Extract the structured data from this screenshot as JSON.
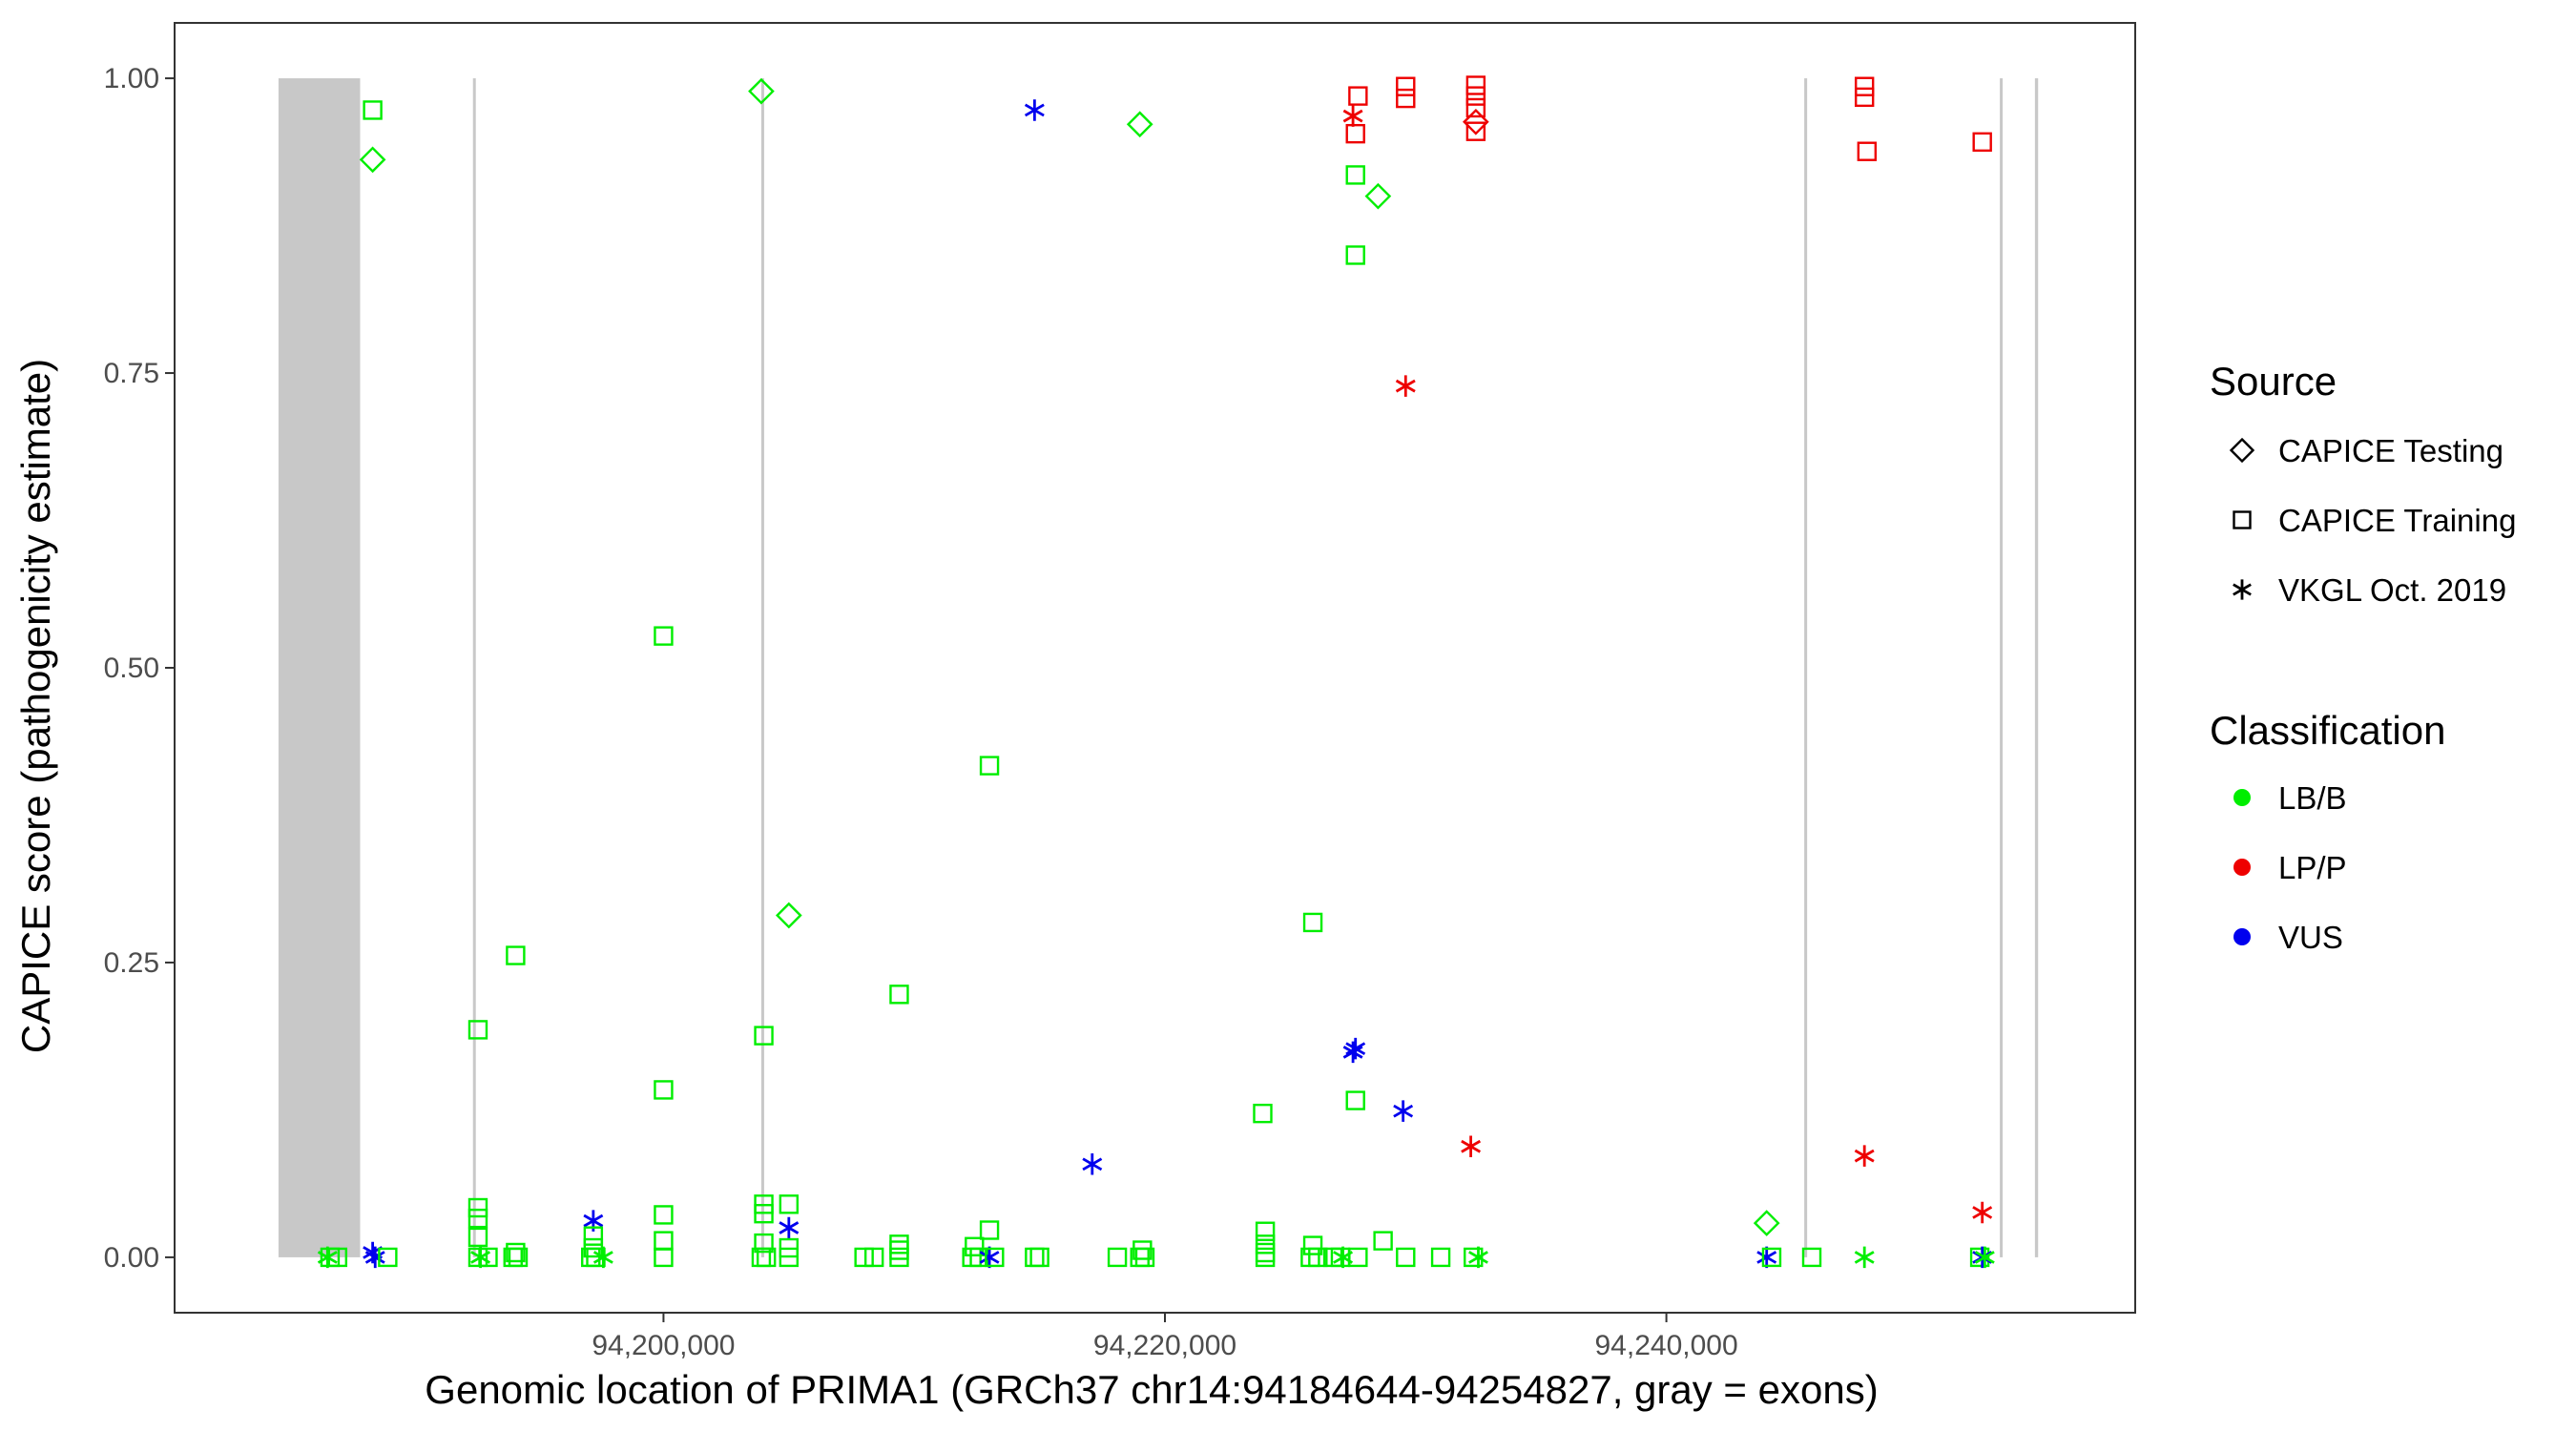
{
  "chart_data": {
    "type": "scatter",
    "title": "",
    "xlabel": "Genomic location of PRIMA1 (GRCh37 chr14:94184644-94254827, gray = exons)",
    "ylabel": "CAPICE score (pathogenicity estimate)",
    "xlim": [
      94180500,
      94258700
    ],
    "ylim": [
      -0.047,
      1.047
    ],
    "x_ticks": [
      94200000,
      94220000,
      94240000
    ],
    "x_tick_labels": [
      "94,200,000",
      "94,220,000",
      "94,240,000"
    ],
    "y_ticks": [
      0,
      0.25,
      0.5,
      0.75,
      1
    ],
    "y_tick_labels": [
      "0.00",
      "0.25",
      "0.50",
      "0.75",
      "1.00"
    ],
    "grid": false,
    "exons": [
      [
        94184644,
        94187900
      ],
      [
        94192400,
        94192500
      ],
      [
        94203900,
        94204000
      ],
      [
        94245500,
        94245600
      ],
      [
        94253300,
        94253400
      ],
      [
        94254700,
        94254827
      ]
    ],
    "legend_placement": "right",
    "legends": [
      {
        "title": "Source",
        "items": [
          {
            "label": "CAPICE Testing",
            "shape": "diamond"
          },
          {
            "label": "CAPICE Training",
            "shape": "square"
          },
          {
            "label": "VKGL Oct. 2019",
            "shape": "asterisk"
          }
        ]
      },
      {
        "title": "Classification",
        "items": [
          {
            "label": "LB/B",
            "color": "#00ee00"
          },
          {
            "label": "LP/P",
            "color": "#ee0000"
          },
          {
            "label": "VUS",
            "color": "#0000ee"
          }
        ]
      }
    ],
    "colors": {
      "LB/B": "#00ee00",
      "LP/P": "#ee0000",
      "VUS": "#0000ee"
    },
    "points": [
      {
        "x": 94188400,
        "y": 0.973,
        "source": "CAPICE Training",
        "class": "LB/B"
      },
      {
        "x": 94188400,
        "y": 0.931,
        "source": "CAPICE Testing",
        "class": "LB/B"
      },
      {
        "x": 94203900,
        "y": 0.989,
        "source": "CAPICE Testing",
        "class": "LB/B"
      },
      {
        "x": 94214800,
        "y": 0.973,
        "source": "VKGL Oct. 2019",
        "class": "VUS"
      },
      {
        "x": 94219000,
        "y": 0.961,
        "source": "CAPICE Testing",
        "class": "LB/B"
      },
      {
        "x": 94227600,
        "y": 0.918,
        "source": "CAPICE Training",
        "class": "LB/B"
      },
      {
        "x": 94228500,
        "y": 0.9,
        "source": "CAPICE Testing",
        "class": "LB/B"
      },
      {
        "x": 94227600,
        "y": 0.85,
        "source": "CAPICE Training",
        "class": "LB/B"
      },
      {
        "x": 94227500,
        "y": 0.968,
        "source": "VKGL Oct. 2019",
        "class": "LP/P"
      },
      {
        "x": 94227700,
        "y": 0.985,
        "source": "CAPICE Training",
        "class": "LP/P"
      },
      {
        "x": 94227600,
        "y": 0.953,
        "source": "CAPICE Training",
        "class": "LP/P"
      },
      {
        "x": 94229600,
        "y": 0.993,
        "source": "CAPICE Training",
        "class": "LP/P"
      },
      {
        "x": 94229600,
        "y": 0.983,
        "source": "CAPICE Training",
        "class": "LP/P"
      },
      {
        "x": 94232400,
        "y": 0.994,
        "source": "CAPICE Training",
        "class": "LP/P"
      },
      {
        "x": 94232400,
        "y": 0.985,
        "source": "CAPICE Training",
        "class": "LP/P"
      },
      {
        "x": 94232400,
        "y": 0.975,
        "source": "CAPICE Training",
        "class": "LP/P"
      },
      {
        "x": 94232400,
        "y": 0.963,
        "source": "CAPICE Testing",
        "class": "LP/P"
      },
      {
        "x": 94232400,
        "y": 0.955,
        "source": "CAPICE Training",
        "class": "LP/P"
      },
      {
        "x": 94229600,
        "y": 0.739,
        "source": "VKGL Oct. 2019",
        "class": "LP/P"
      },
      {
        "x": 94247900,
        "y": 0.993,
        "source": "CAPICE Training",
        "class": "LP/P"
      },
      {
        "x": 94247900,
        "y": 0.984,
        "source": "CAPICE Training",
        "class": "LP/P"
      },
      {
        "x": 94248000,
        "y": 0.938,
        "source": "CAPICE Training",
        "class": "LP/P"
      },
      {
        "x": 94252600,
        "y": 0.946,
        "source": "CAPICE Training",
        "class": "LP/P"
      },
      {
        "x": 94200000,
        "y": 0.527,
        "source": "CAPICE Training",
        "class": "LB/B"
      },
      {
        "x": 94213000,
        "y": 0.417,
        "source": "CAPICE Training",
        "class": "LB/B"
      },
      {
        "x": 94205000,
        "y": 0.29,
        "source": "CAPICE Testing",
        "class": "LB/B"
      },
      {
        "x": 94225900,
        "y": 0.284,
        "source": "CAPICE Training",
        "class": "LB/B"
      },
      {
        "x": 94194100,
        "y": 0.256,
        "source": "CAPICE Training",
        "class": "LB/B"
      },
      {
        "x": 94209400,
        "y": 0.223,
        "source": "CAPICE Training",
        "class": "LB/B"
      },
      {
        "x": 94192600,
        "y": 0.193,
        "source": "CAPICE Training",
        "class": "LB/B"
      },
      {
        "x": 94204000,
        "y": 0.188,
        "source": "CAPICE Training",
        "class": "LB/B"
      },
      {
        "x": 94227600,
        "y": 0.177,
        "source": "VKGL Oct. 2019",
        "class": "VUS"
      },
      {
        "x": 94227500,
        "y": 0.174,
        "source": "VKGL Oct. 2019",
        "class": "VUS"
      },
      {
        "x": 94200000,
        "y": 0.142,
        "source": "CAPICE Training",
        "class": "LB/B"
      },
      {
        "x": 94227600,
        "y": 0.133,
        "source": "CAPICE Training",
        "class": "LB/B"
      },
      {
        "x": 94229500,
        "y": 0.124,
        "source": "VKGL Oct. 2019",
        "class": "VUS"
      },
      {
        "x": 94223900,
        "y": 0.122,
        "source": "CAPICE Training",
        "class": "LB/B"
      },
      {
        "x": 94232200,
        "y": 0.094,
        "source": "VKGL Oct. 2019",
        "class": "LP/P"
      },
      {
        "x": 94247900,
        "y": 0.086,
        "source": "VKGL Oct. 2019",
        "class": "LP/P"
      },
      {
        "x": 94217100,
        "y": 0.079,
        "source": "VKGL Oct. 2019",
        "class": "VUS"
      },
      {
        "x": 94192600,
        "y": 0.042,
        "source": "CAPICE Training",
        "class": "LB/B"
      },
      {
        "x": 94192600,
        "y": 0.033,
        "source": "CAPICE Training",
        "class": "LB/B"
      },
      {
        "x": 94200000,
        "y": 0.036,
        "source": "CAPICE Training",
        "class": "LB/B"
      },
      {
        "x": 94204000,
        "y": 0.045,
        "source": "CAPICE Training",
        "class": "LB/B"
      },
      {
        "x": 94204000,
        "y": 0.037,
        "source": "CAPICE Training",
        "class": "LB/B"
      },
      {
        "x": 94205000,
        "y": 0.045,
        "source": "CAPICE Training",
        "class": "LB/B"
      },
      {
        "x": 94197200,
        "y": 0.031,
        "source": "VKGL Oct. 2019",
        "class": "VUS"
      },
      {
        "x": 94205000,
        "y": 0.025,
        "source": "VKGL Oct. 2019",
        "class": "VUS"
      },
      {
        "x": 94213000,
        "y": 0.023,
        "source": "CAPICE Training",
        "class": "LB/B"
      },
      {
        "x": 94224000,
        "y": 0.022,
        "source": "CAPICE Training",
        "class": "LB/B"
      },
      {
        "x": 94244000,
        "y": 0.029,
        "source": "CAPICE Testing",
        "class": "LB/B"
      },
      {
        "x": 94252600,
        "y": 0.038,
        "source": "VKGL Oct. 2019",
        "class": "LP/P"
      },
      {
        "x": 94192600,
        "y": 0.017,
        "source": "CAPICE Training",
        "class": "LB/B"
      },
      {
        "x": 94197200,
        "y": 0.018,
        "source": "CAPICE Training",
        "class": "LB/B"
      },
      {
        "x": 94200000,
        "y": 0.014,
        "source": "CAPICE Training",
        "class": "LB/B"
      },
      {
        "x": 94204000,
        "y": 0.012,
        "source": "CAPICE Training",
        "class": "LB/B"
      },
      {
        "x": 94209400,
        "y": 0.011,
        "source": "CAPICE Training",
        "class": "LB/B"
      },
      {
        "x": 94212400,
        "y": 0.009,
        "source": "CAPICE Training",
        "class": "LB/B"
      },
      {
        "x": 94224000,
        "y": 0.011,
        "source": "CAPICE Training",
        "class": "LB/B"
      },
      {
        "x": 94225900,
        "y": 0.01,
        "source": "CAPICE Training",
        "class": "LB/B"
      },
      {
        "x": 94228700,
        "y": 0.014,
        "source": "CAPICE Training",
        "class": "LB/B"
      },
      {
        "x": 94197200,
        "y": 0.008,
        "source": "CAPICE Training",
        "class": "LB/B"
      },
      {
        "x": 94205000,
        "y": 0.008,
        "source": "CAPICE Training",
        "class": "LB/B"
      },
      {
        "x": 94209400,
        "y": 0.006,
        "source": "CAPICE Training",
        "class": "LB/B"
      },
      {
        "x": 94219100,
        "y": 0.006,
        "source": "CAPICE Training",
        "class": "LB/B"
      },
      {
        "x": 94194100,
        "y": 0.004,
        "source": "CAPICE Training",
        "class": "LB/B"
      },
      {
        "x": 94224000,
        "y": 0.004,
        "source": "CAPICE Training",
        "class": "LB/B"
      },
      {
        "x": 94188400,
        "y": 0.004,
        "source": "VKGL Oct. 2019",
        "class": "VUS"
      },
      {
        "x": 94186700,
        "y": 0.0,
        "source": "CAPICE Training",
        "class": "LB/B"
      },
      {
        "x": 94186600,
        "y": 0.0,
        "source": "VKGL Oct. 2019",
        "class": "LB/B"
      },
      {
        "x": 94187000,
        "y": 0.0,
        "source": "CAPICE Training",
        "class": "LB/B"
      },
      {
        "x": 94188500,
        "y": 0.0,
        "source": "VKGL Oct. 2019",
        "class": "VUS"
      },
      {
        "x": 94189000,
        "y": 0.0,
        "source": "CAPICE Training",
        "class": "LB/B"
      },
      {
        "x": 94192600,
        "y": 0.0,
        "source": "CAPICE Training",
        "class": "LB/B"
      },
      {
        "x": 94192700,
        "y": 0.0,
        "source": "VKGL Oct. 2019",
        "class": "LB/B"
      },
      {
        "x": 94193000,
        "y": 0.0,
        "source": "CAPICE Training",
        "class": "LB/B"
      },
      {
        "x": 94194000,
        "y": 0.0,
        "source": "CAPICE Training",
        "class": "LB/B"
      },
      {
        "x": 94194200,
        "y": 0.0,
        "source": "CAPICE Training",
        "class": "LB/B"
      },
      {
        "x": 94197100,
        "y": 0.0,
        "source": "CAPICE Training",
        "class": "LB/B"
      },
      {
        "x": 94197300,
        "y": 0.0,
        "source": "CAPICE Training",
        "class": "LB/B"
      },
      {
        "x": 94197600,
        "y": 0.0,
        "source": "VKGL Oct. 2019",
        "class": "LB/B"
      },
      {
        "x": 94200000,
        "y": 0.0,
        "source": "CAPICE Training",
        "class": "LB/B"
      },
      {
        "x": 94203900,
        "y": 0.0,
        "source": "CAPICE Training",
        "class": "LB/B"
      },
      {
        "x": 94204100,
        "y": 0.0,
        "source": "CAPICE Training",
        "class": "LB/B"
      },
      {
        "x": 94205000,
        "y": 0.0,
        "source": "CAPICE Training",
        "class": "LB/B"
      },
      {
        "x": 94208000,
        "y": 0.0,
        "source": "CAPICE Training",
        "class": "LB/B"
      },
      {
        "x": 94208400,
        "y": 0.0,
        "source": "CAPICE Training",
        "class": "LB/B"
      },
      {
        "x": 94209400,
        "y": 0.0,
        "source": "CAPICE Training",
        "class": "LB/B"
      },
      {
        "x": 94212300,
        "y": 0.0,
        "source": "CAPICE Training",
        "class": "LB/B"
      },
      {
        "x": 94212600,
        "y": 0.0,
        "source": "CAPICE Training",
        "class": "LB/B"
      },
      {
        "x": 94213000,
        "y": 0.0,
        "source": "VKGL Oct. 2019",
        "class": "VUS"
      },
      {
        "x": 94213200,
        "y": 0.0,
        "source": "CAPICE Training",
        "class": "LB/B"
      },
      {
        "x": 94214800,
        "y": 0.0,
        "source": "CAPICE Training",
        "class": "LB/B"
      },
      {
        "x": 94215000,
        "y": 0.0,
        "source": "CAPICE Training",
        "class": "LB/B"
      },
      {
        "x": 94218100,
        "y": 0.0,
        "source": "CAPICE Training",
        "class": "LB/B"
      },
      {
        "x": 94219000,
        "y": 0.0,
        "source": "CAPICE Training",
        "class": "LB/B"
      },
      {
        "x": 94219200,
        "y": 0.0,
        "source": "CAPICE Training",
        "class": "LB/B"
      },
      {
        "x": 94224000,
        "y": 0.0,
        "source": "CAPICE Training",
        "class": "LB/B"
      },
      {
        "x": 94225800,
        "y": 0.0,
        "source": "CAPICE Training",
        "class": "LB/B"
      },
      {
        "x": 94226100,
        "y": 0.0,
        "source": "CAPICE Training",
        "class": "LB/B"
      },
      {
        "x": 94226700,
        "y": 0.0,
        "source": "CAPICE Training",
        "class": "LB/B"
      },
      {
        "x": 94227000,
        "y": 0.0,
        "source": "CAPICE Training",
        "class": "LB/B"
      },
      {
        "x": 94227100,
        "y": 0.0,
        "source": "VKGL Oct. 2019",
        "class": "LB/B"
      },
      {
        "x": 94227700,
        "y": 0.0,
        "source": "CAPICE Training",
        "class": "LB/B"
      },
      {
        "x": 94229600,
        "y": 0.0,
        "source": "CAPICE Training",
        "class": "LB/B"
      },
      {
        "x": 94231000,
        "y": 0.0,
        "source": "CAPICE Training",
        "class": "LB/B"
      },
      {
        "x": 94232300,
        "y": 0.0,
        "source": "CAPICE Training",
        "class": "LB/B"
      },
      {
        "x": 94232500,
        "y": 0.0,
        "source": "VKGL Oct. 2019",
        "class": "LB/B"
      },
      {
        "x": 94244000,
        "y": 0.0,
        "source": "VKGL Oct. 2019",
        "class": "VUS"
      },
      {
        "x": 94244200,
        "y": 0.0,
        "source": "CAPICE Training",
        "class": "LB/B"
      },
      {
        "x": 94245800,
        "y": 0.0,
        "source": "CAPICE Training",
        "class": "LB/B"
      },
      {
        "x": 94247900,
        "y": 0.0,
        "source": "VKGL Oct. 2019",
        "class": "LB/B"
      },
      {
        "x": 94252500,
        "y": 0.0,
        "source": "CAPICE Training",
        "class": "LB/B"
      },
      {
        "x": 94252600,
        "y": 0.0,
        "source": "VKGL Oct. 2019",
        "class": "VUS"
      },
      {
        "x": 94252700,
        "y": 0.0,
        "source": "VKGL Oct. 2019",
        "class": "LB/B"
      }
    ]
  }
}
